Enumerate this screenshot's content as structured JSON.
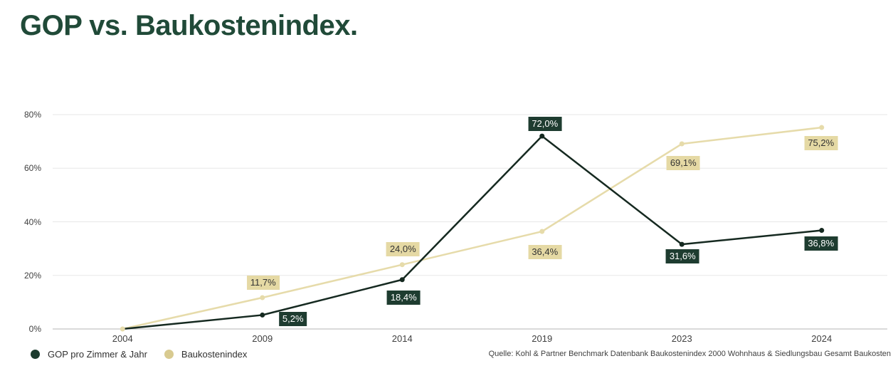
{
  "title": "GOP vs. Baukostenindex.",
  "legend": {
    "items": [
      {
        "label": "GOP pro Zimmer & Jahr",
        "color": "#1c3b2e"
      },
      {
        "label": "Baukostenindex",
        "color": "#d8ca90"
      }
    ]
  },
  "source": "Quelle:  Kohl & Partner Benchmark Datenbank Baukostenindex 2000 Wohnhaus & Siedlungsbau Gesamt Baukosten",
  "colors": {
    "title": "#204a38",
    "gridline": "#e7e7e7",
    "axis_line": "#b4b4b4",
    "tick_text": "#3f3f3f",
    "background": "#ffffff"
  },
  "chart_data": {
    "type": "line",
    "title": "GOP vs. Baukostenindex.",
    "categories": [
      "2004",
      "2009",
      "2014",
      "2019",
      "2023",
      "2024"
    ],
    "series": [
      {
        "name": "GOP pro Zimmer & Jahr",
        "color": "#152920",
        "label_bg": "#1e3c30",
        "label_color": "#ffffff",
        "values": [
          0,
          5.2,
          18.4,
          72.0,
          31.6,
          36.8
        ],
        "labels": [
          "",
          "5,2%",
          "18,4%",
          "72,0%",
          "31,6%",
          "36,8%"
        ],
        "label_dx": [
          0,
          43,
          2,
          4,
          1,
          -1
        ],
        "label_dy": [
          0,
          6,
          25,
          -17,
          17,
          18
        ],
        "hidden_markers": [
          0
        ]
      },
      {
        "name": "Baukostenindex",
        "color": "#e6dbaa",
        "label_bg": "#e5d9a4",
        "label_color": "#333333",
        "values": [
          0,
          11.7,
          24.0,
          36.4,
          69.1,
          75.2
        ],
        "labels": [
          "",
          "11,7%",
          "24,0%",
          "36,4%",
          "69,1%",
          "75,2%"
        ],
        "label_dx": [
          0,
          1,
          1,
          4,
          2,
          -1
        ],
        "label_dy": [
          0,
          -21,
          -22,
          29,
          27,
          22
        ],
        "hidden_markers": []
      }
    ],
    "yticks": [
      {
        "label": "0%",
        "value": 0
      },
      {
        "label": "20%",
        "value": 20
      },
      {
        "label": "40%",
        "value": 40
      },
      {
        "label": "60%",
        "value": 60
      },
      {
        "label": "80%",
        "value": 80
      }
    ],
    "ylim": [
      0,
      80
    ],
    "grid": true,
    "legend_position": "bottom-left"
  }
}
